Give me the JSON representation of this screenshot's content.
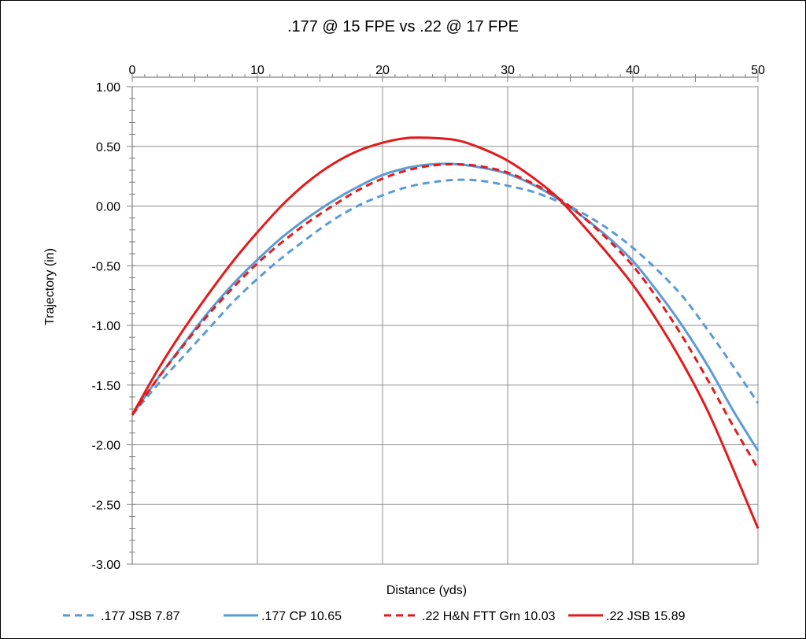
{
  "chart_data": {
    "type": "line",
    "title": ".177 @ 15 FPE vs .22 @ 17 FPE",
    "xlabel": "Distance (yds)",
    "ylabel": "Trajectory (in)",
    "x_axis_position": "top",
    "xlim": [
      0,
      50
    ],
    "ylim": [
      -3.0,
      1.0
    ],
    "x_ticks": [
      0,
      10,
      20,
      30,
      40,
      50
    ],
    "x_tick_labels": [
      "0",
      "10",
      "20",
      "30",
      "40",
      "50"
    ],
    "y_ticks": [
      1.0,
      0.5,
      0.0,
      -0.5,
      -1.0,
      -1.5,
      -2.0,
      -2.5,
      -3.0
    ],
    "y_tick_labels": [
      "1.00",
      "0.50",
      "0.00",
      "-0.50",
      "-1.00",
      "-1.50",
      "-2.00",
      "-2.50",
      "-3.00"
    ],
    "grid": true,
    "legend_position": "bottom",
    "series": [
      {
        "name": ".177 JSB 7.87",
        "color": "#5b9bd5",
        "dash": true,
        "x": [
          0,
          2,
          4,
          6,
          8,
          10,
          12,
          14,
          16,
          18,
          20,
          22,
          24,
          26,
          28,
          30,
          32,
          34,
          36,
          38,
          40,
          42,
          44,
          46,
          48,
          50
        ],
        "y": [
          -1.75,
          -1.5,
          -1.27,
          -1.04,
          -0.81,
          -0.61,
          -0.43,
          -0.27,
          -0.12,
          0.0,
          0.09,
          0.16,
          0.2,
          0.22,
          0.21,
          0.17,
          0.12,
          0.04,
          -0.06,
          -0.19,
          -0.35,
          -0.54,
          -0.76,
          -1.04,
          -1.34,
          -1.65
        ]
      },
      {
        "name": ".177 CP 10.65",
        "color": "#5b9bd5",
        "dash": false,
        "x": [
          0,
          2,
          4,
          6,
          8,
          10,
          12,
          14,
          16,
          18,
          20,
          22,
          24,
          26,
          28,
          30,
          32,
          34,
          36,
          38,
          40,
          42,
          44,
          46,
          48,
          50
        ],
        "y": [
          -1.75,
          -1.45,
          -1.17,
          -0.9,
          -0.66,
          -0.45,
          -0.26,
          -0.1,
          0.04,
          0.16,
          0.26,
          0.32,
          0.35,
          0.35,
          0.32,
          0.27,
          0.18,
          0.06,
          -0.09,
          -0.26,
          -0.46,
          -0.72,
          -1.01,
          -1.34,
          -1.71,
          -2.05
        ]
      },
      {
        "name": ".22 H&N FTT Grn 10.03",
        "color": "#e31a1c",
        "dash": true,
        "x": [
          0,
          2,
          4,
          6,
          8,
          10,
          12,
          14,
          16,
          18,
          20,
          22,
          24,
          26,
          28,
          30,
          32,
          34,
          36,
          38,
          40,
          42,
          44,
          46,
          48,
          50
        ],
        "y": [
          -1.75,
          -1.45,
          -1.18,
          -0.92,
          -0.69,
          -0.48,
          -0.3,
          -0.14,
          0.0,
          0.13,
          0.23,
          0.3,
          0.34,
          0.35,
          0.33,
          0.28,
          0.19,
          0.07,
          -0.09,
          -0.28,
          -0.5,
          -0.78,
          -1.1,
          -1.46,
          -1.84,
          -2.2
        ]
      },
      {
        "name": ".22 JSB 15.89",
        "color": "#e31a1c",
        "dash": false,
        "x": [
          0,
          2,
          4,
          6,
          8,
          10,
          12,
          14,
          16,
          18,
          20,
          22,
          24,
          26,
          28,
          30,
          32,
          34,
          36,
          38,
          40,
          42,
          44,
          46,
          48,
          50
        ],
        "y": [
          -1.75,
          -1.38,
          -1.05,
          -0.75,
          -0.47,
          -0.22,
          0.01,
          0.2,
          0.35,
          0.46,
          0.53,
          0.57,
          0.57,
          0.55,
          0.48,
          0.38,
          0.24,
          0.07,
          -0.16,
          -0.4,
          -0.66,
          -0.97,
          -1.32,
          -1.72,
          -2.2,
          -2.7
        ]
      }
    ]
  }
}
